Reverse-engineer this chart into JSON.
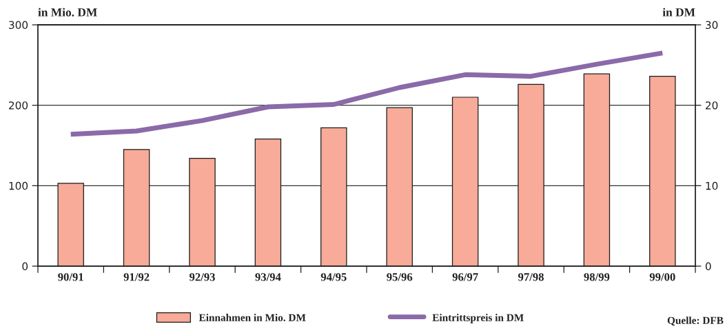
{
  "chart_data": {
    "type": "bar",
    "categories": [
      "90/91",
      "91/92",
      "92/93",
      "93/94",
      "94/95",
      "95/96",
      "96/97",
      "97/98",
      "98/99",
      "99/00"
    ],
    "series": [
      {
        "name": "Einnahmen in Mio. DM",
        "color": "#f7ab98",
        "values": [
          103,
          145,
          134,
          158,
          172,
          197,
          210,
          226,
          239,
          236
        ]
      },
      {
        "name": "Eintrittspreis in DM",
        "type": "line",
        "axis": "y2",
        "color": "#8a6aa8",
        "values": [
          16.4,
          16.8,
          18.1,
          19.8,
          20.1,
          22.2,
          23.8,
          23.6,
          25.1,
          26.5
        ]
      }
    ],
    "ylabel": "in Mio. DM",
    "y2label": "in DM",
    "ylim": [
      0,
      300
    ],
    "yticks": [
      0,
      100,
      200,
      300
    ],
    "y2lim": [
      0,
      30
    ],
    "y2ticks": [
      0,
      10,
      20,
      30
    ],
    "grid": "y",
    "legend": "bottom",
    "annotations": [
      "Quelle: DFB"
    ]
  }
}
